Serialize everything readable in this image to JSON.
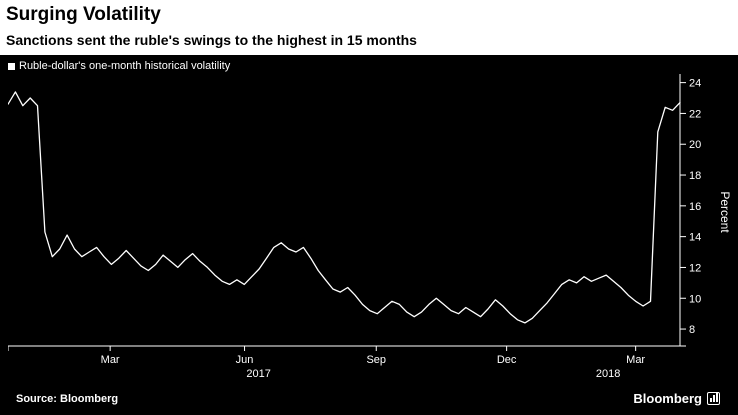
{
  "header": {
    "title": "Surging Volatility",
    "subtitle": "Sanctions sent the ruble's swings to the highest in 15 months"
  },
  "legend": {
    "label": "Ruble-dollar's one-month historical volatility"
  },
  "footer": {
    "source": "Source: Bloomberg",
    "brand": "Bloomberg"
  },
  "chart_data": {
    "type": "line",
    "title": "Surging Volatility",
    "subtitle": "Sanctions sent the ruble's swings to the highest in 15 months",
    "ylabel": "Percent",
    "xlabel": "",
    "ylim": [
      6.9,
      24.3
    ],
    "yticks": [
      8,
      10,
      12,
      14,
      16,
      18,
      20,
      22,
      24
    ],
    "xticks": [
      {
        "label": "Mar",
        "pos": 0.152
      },
      {
        "label": "Jun",
        "pos": 0.352
      },
      {
        "label": "Sep",
        "pos": 0.548
      },
      {
        "label": "Dec",
        "pos": 0.742
      },
      {
        "label": "Mar",
        "pos": 0.934
      }
    ],
    "year_labels": [
      {
        "label": "2017",
        "pos": 0.373
      },
      {
        "label": "2018",
        "pos": 0.893
      }
    ],
    "legend_position": "top-left",
    "grid": false,
    "axis_side": "right",
    "x_span": "Jan 2017 - mid Apr 2018",
    "series": [
      {
        "name": "Ruble-dollar's one-month historical volatility",
        "values": [
          22.6,
          23.4,
          22.5,
          23.0,
          22.5,
          14.3,
          12.7,
          13.2,
          14.1,
          13.2,
          12.7,
          13.0,
          13.3,
          12.7,
          12.2,
          12.6,
          13.1,
          12.6,
          12.1,
          11.8,
          12.2,
          12.8,
          12.4,
          12.0,
          12.5,
          12.9,
          12.4,
          12.0,
          11.5,
          11.1,
          10.9,
          11.2,
          10.9,
          11.4,
          11.9,
          12.6,
          13.3,
          13.6,
          13.2,
          13.0,
          13.3,
          12.6,
          11.8,
          11.2,
          10.6,
          10.4,
          10.7,
          10.2,
          9.6,
          9.2,
          9.0,
          9.4,
          9.8,
          9.6,
          9.1,
          8.8,
          9.1,
          9.6,
          10.0,
          9.6,
          9.2,
          9.0,
          9.4,
          9.1,
          8.8,
          9.3,
          9.9,
          9.5,
          9.0,
          8.6,
          8.4,
          8.7,
          9.2,
          9.7,
          10.3,
          10.9,
          11.2,
          11.0,
          11.4,
          11.1,
          11.3,
          11.5,
          11.1,
          10.7,
          10.2,
          9.8,
          9.5,
          9.8,
          20.8,
          22.4,
          22.2,
          22.7
        ]
      }
    ],
    "colors": {
      "background": "#000000",
      "line": "#ffffff",
      "axis_text": "#ffffff",
      "header_text": "#000000",
      "header_background": "#ffffff"
    }
  }
}
